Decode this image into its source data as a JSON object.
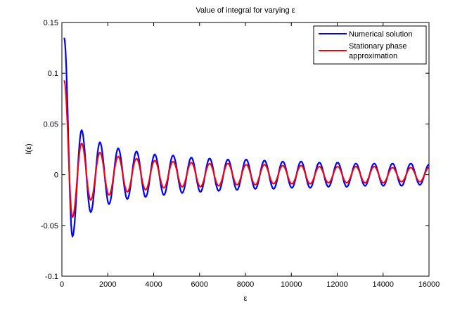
{
  "chart_data": {
    "type": "line",
    "title": "Value of integral for varying ε",
    "xlabel": "ε",
    "ylabel": "I(ε)",
    "xlim": [
      0,
      16000
    ],
    "ylim": [
      -0.1,
      0.15
    ],
    "x_ticks": [
      0,
      2000,
      4000,
      6000,
      8000,
      10000,
      12000,
      14000,
      16000
    ],
    "x_tick_labels": [
      "0",
      "2000",
      "4000",
      "6000",
      "8000",
      "10000",
      "12000",
      "14000",
      "16000"
    ],
    "y_ticks": [
      -0.1,
      -0.05,
      0,
      0.05,
      0.1,
      0.15
    ],
    "y_tick_labels": [
      "-0.1",
      "-0.05",
      "0",
      "0.05",
      "0.1",
      "0.15"
    ],
    "grid": false,
    "legend_position": "top-right",
    "note": "series given as successive extrema (peaks/troughs) of an oscillating curve",
    "x": [
      100,
      460,
      860,
      1257,
      1657,
      2054,
      2454,
      2851,
      3251,
      3648,
      4048,
      4445,
      4845,
      5242,
      5642,
      6039,
      6439,
      6836,
      7236,
      7633,
      8033,
      8430,
      8830,
      9227,
      9627,
      10024,
      10424,
      10821,
      11221,
      11618,
      12018,
      12415,
      12815,
      13212,
      13612,
      14009,
      14409,
      14806,
      15206,
      15603,
      16000
    ],
    "series": [
      {
        "name": "Numerical solution",
        "color": "#0000ff",
        "values": [
          0.135,
          -0.061,
          0.044,
          -0.037,
          0.032,
          -0.029,
          0.026,
          -0.024,
          0.023,
          -0.022,
          0.02,
          -0.02,
          0.019,
          -0.018,
          0.017,
          -0.017,
          0.016,
          -0.016,
          0.015,
          -0.015,
          0.015,
          -0.014,
          0.014,
          -0.014,
          0.013,
          -0.013,
          0.013,
          -0.013,
          0.012,
          -0.012,
          0.012,
          -0.012,
          0.011,
          -0.011,
          0.011,
          -0.011,
          0.011,
          -0.011,
          0.011,
          -0.01,
          0.01
        ]
      },
      {
        "name": "Stationary phase approximation",
        "name_line1": "Stationary phase",
        "name_line2": "approximation",
        "color": "#ff0000",
        "values": [
          0.093,
          -0.042,
          0.031,
          -0.025,
          0.022,
          -0.02,
          0.018,
          -0.017,
          0.016,
          -0.015,
          0.014,
          -0.013,
          0.013,
          -0.012,
          0.012,
          -0.012,
          0.011,
          -0.011,
          0.011,
          -0.01,
          0.01,
          -0.01,
          0.01,
          -0.009,
          0.009,
          -0.009,
          0.009,
          -0.009,
          0.008,
          -0.008,
          0.008,
          -0.008,
          0.008,
          -0.008,
          0.008,
          -0.008,
          0.007,
          -0.007,
          0.007,
          -0.007,
          0.007
        ]
      }
    ]
  }
}
